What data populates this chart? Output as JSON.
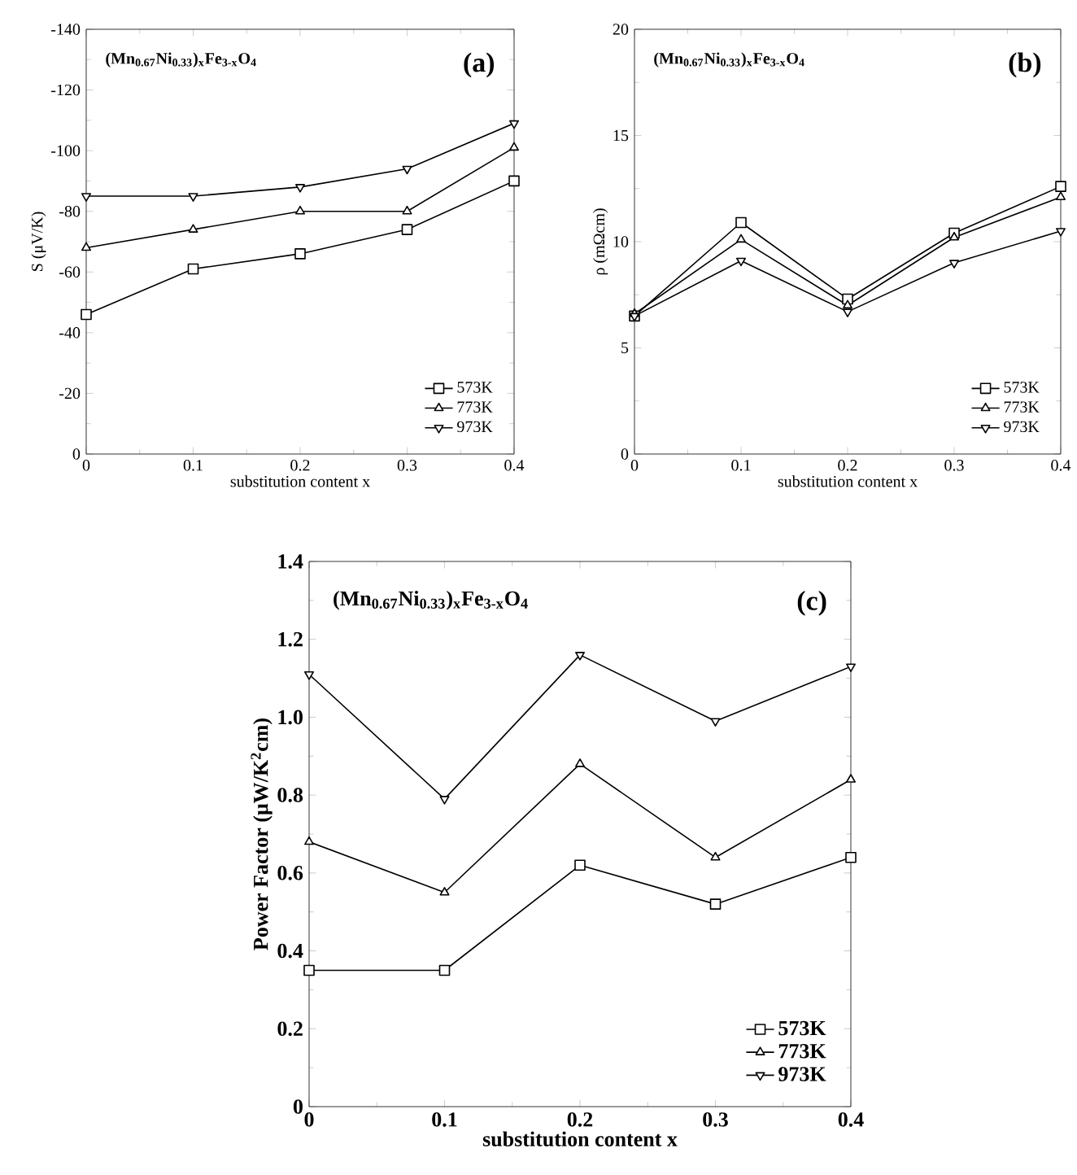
{
  "chart_data": [
    {
      "type": "line",
      "xlabel": "substitution content x",
      "ylabel": "S (μV/K)",
      "annotations": [
        "(Mn$_{0.67}$Ni$_{0.33}$)$_{x}$Fe$_{3-x}$O$_{4}$",
        "(a)"
      ],
      "x": [
        0,
        0.1,
        0.2,
        0.3,
        0.4
      ],
      "xlim": [
        0,
        0.4
      ],
      "xticks": [
        0,
        0.1,
        0.2,
        0.3,
        0.4
      ],
      "ylim": [
        0,
        -140
      ],
      "yticks": [
        0,
        -20,
        -40,
        -60,
        -80,
        -100,
        -120,
        -140
      ],
      "legend": "bottom right",
      "line_style": "solid",
      "series": [
        {
          "name": "573K",
          "color": "#000000",
          "marker": "square",
          "values": [
            -46,
            -61,
            -66,
            -74,
            -90
          ]
        },
        {
          "name": "773K",
          "color": "#000000",
          "marker": "triangle",
          "values": [
            -68,
            -74,
            -80,
            -80,
            -101
          ]
        },
        {
          "name": "973K",
          "color": "#000000",
          "marker": "triangle down",
          "values": [
            -85,
            -85,
            -88,
            -94,
            -109
          ]
        }
      ]
    },
    {
      "type": "line",
      "xlabel": "substitution content x",
      "ylabel": "ρ (mΩcm)",
      "annotations": [
        "(Mn$_{0.67}$Ni$_{0.33}$)$_{x}$Fe$_{3-x}$O$_{4}$",
        "(b)"
      ],
      "x": [
        0,
        0.1,
        0.2,
        0.3,
        0.4
      ],
      "xlim": [
        0,
        0.4
      ],
      "xticks": [
        0,
        0.1,
        0.2,
        0.3,
        0.4
      ],
      "ylim": [
        0,
        20
      ],
      "yticks": [
        0,
        5,
        10,
        15,
        20
      ],
      "legend": "bottom right",
      "line_style": "solid",
      "series": [
        {
          "name": "573K",
          "color": "#000000",
          "marker": "square",
          "values": [
            6.5,
            10.9,
            7.3,
            10.4,
            12.6
          ]
        },
        {
          "name": "773K",
          "color": "#000000",
          "marker": "triangle",
          "values": [
            6.6,
            10.1,
            7.0,
            10.2,
            12.1
          ]
        },
        {
          "name": "973K",
          "color": "#000000",
          "marker": "triangle down",
          "values": [
            6.5,
            9.1,
            6.7,
            9.0,
            10.5
          ]
        }
      ]
    },
    {
      "type": "line",
      "xlabel": "substitution content x",
      "ylabel": "Power Factor (μW/K$^{2}$cm)",
      "annotations": [
        "(Mn$_{0.67}$Ni$_{0.33}$)$_{x}$Fe$_{3-x}$O$_{4}$",
        "(c)"
      ],
      "x": [
        0,
        0.1,
        0.2,
        0.3,
        0.4
      ],
      "xlim": [
        0,
        0.4
      ],
      "xticks": [
        0,
        0.1,
        0.2,
        0.3,
        0.4
      ],
      "ylim": [
        0,
        1.4
      ],
      "yticks": [
        0,
        0.2,
        0.4,
        0.6,
        0.8,
        {
          "value": 1,
          "label": "1.0"
        },
        1.2,
        1.4
      ],
      "legend": "bottom right",
      "line_style": "solid",
      "series": [
        {
          "name": "573K",
          "color": "#000000",
          "marker": "square",
          "values": [
            0.35,
            0.35,
            0.62,
            0.52,
            0.64
          ]
        },
        {
          "name": "773K",
          "color": "#000000",
          "marker": "triangle",
          "values": [
            0.68,
            0.55,
            0.88,
            0.64,
            0.84
          ]
        },
        {
          "name": "973K",
          "color": "#000000",
          "marker": "triangle down",
          "values": [
            1.11,
            0.79,
            1.16,
            0.99,
            1.13
          ]
        }
      ]
    }
  ]
}
